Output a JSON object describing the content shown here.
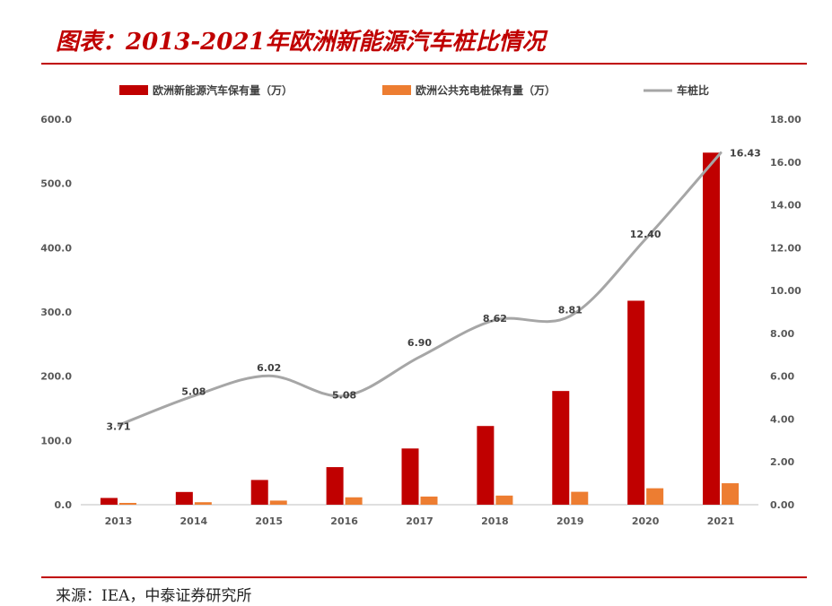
{
  "header": {
    "title": "图表：2013-2021年欧洲新能源汽车桩比情况"
  },
  "footer": {
    "source": "来源：IEA，中泰证券研究所"
  },
  "colors": {
    "ev": "#c00000",
    "charger": "#ed7d31",
    "ratio": "#a6a6a6",
    "rule": "#c00000"
  },
  "chart_data": {
    "type": "bar",
    "categories": [
      "2013",
      "2014",
      "2015",
      "2016",
      "2017",
      "2018",
      "2019",
      "2020",
      "2021"
    ],
    "series": [
      {
        "name": "欧洲新能源汽车保有量（万）",
        "type": "bar",
        "axis": "left",
        "values": [
          10.5,
          19.8,
          38.5,
          58.5,
          87.5,
          122.5,
          177,
          317.5,
          548
        ]
      },
      {
        "name": "欧洲公共充电桩保有量（万）",
        "type": "bar",
        "axis": "left",
        "values": [
          2.8,
          3.9,
          6.4,
          11.5,
          12.7,
          14.2,
          20.1,
          25.6,
          33.4
        ]
      },
      {
        "name": "车桩比",
        "type": "line",
        "axis": "right",
        "values": [
          3.71,
          5.08,
          6.02,
          5.08,
          6.9,
          8.62,
          8.81,
          12.4,
          16.43
        ],
        "labels": [
          "3.71",
          "5.08",
          "6.02",
          "5.08",
          "6.90",
          "8.62",
          "8.81",
          "12.40",
          "16.43"
        ]
      }
    ],
    "y_left": {
      "range": [
        0,
        600
      ],
      "ticks": [
        "0.0",
        "100.0",
        "200.0",
        "300.0",
        "400.0",
        "500.0",
        "600.0"
      ]
    },
    "y_right": {
      "range": [
        0,
        18
      ],
      "ticks": [
        "0.00",
        "2.00",
        "4.00",
        "6.00",
        "8.00",
        "10.00",
        "12.00",
        "14.00",
        "16.00",
        "18.00"
      ]
    },
    "legend_position": "top",
    "grid": false
  }
}
